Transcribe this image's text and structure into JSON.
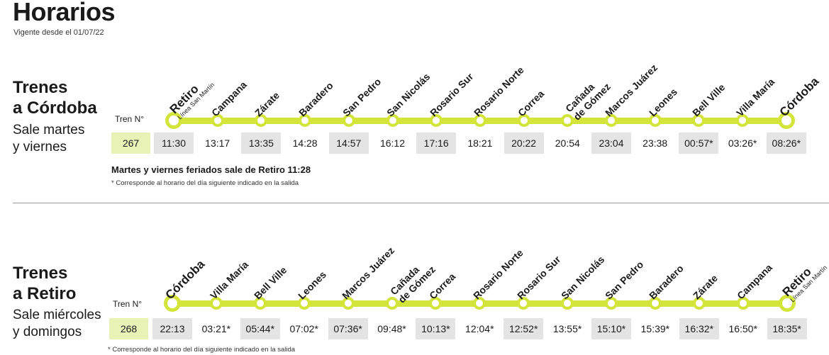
{
  "page": {
    "title": "Horarios",
    "vigente": "Vigente desde el 01/07/22"
  },
  "sections": [
    {
      "title_line1": "Trenes",
      "title_line2": "a Córdoba",
      "sub_line1": "Sale martes",
      "sub_line2": "y viernes",
      "tren_label": "Tren N°",
      "tren_number": "267",
      "stations": [
        {
          "name": "Retiro",
          "sub": "Línea San Martín",
          "terminal": true
        },
        {
          "name": "Campana"
        },
        {
          "name": "Zárate"
        },
        {
          "name": "Baradero"
        },
        {
          "name": "San Pedro"
        },
        {
          "name": "San Nicolás"
        },
        {
          "name": "Rosario Sur"
        },
        {
          "name": "Rosario Norte"
        },
        {
          "name": "Correa"
        },
        {
          "name": "Cañada",
          "name2": "de Gómez"
        },
        {
          "name": "Marcos Juárez"
        },
        {
          "name": "Leones"
        },
        {
          "name": "Bell Ville"
        },
        {
          "name": "Villa María"
        },
        {
          "name": "Córdoba",
          "terminal": true
        }
      ],
      "times": [
        "11:30",
        "13:17",
        "13:35",
        "14:28",
        "14:57",
        "16:12",
        "17:16",
        "18:21",
        "20:22",
        "20:54",
        "23:04",
        "23:38",
        "00:57*",
        "03:26*",
        "08:26*"
      ],
      "note_bold": "Martes y viernes feriados sale de Retiro 11:28",
      "note": "* Corresponde al horario del día siguiente indicado en la salida"
    },
    {
      "title_line1": "Trenes",
      "title_line2": "a Retiro",
      "sub_line1": "Sale miércoles",
      "sub_line2": "y domingos",
      "tren_label": "Tren N°",
      "tren_number": "268",
      "stations": [
        {
          "name": "Córdoba",
          "terminal": true
        },
        {
          "name": "Villa María"
        },
        {
          "name": "Bell Ville"
        },
        {
          "name": "Leones"
        },
        {
          "name": "Marcos Juárez"
        },
        {
          "name": "Cañada",
          "name2": "de Gómez"
        },
        {
          "name": "Correa"
        },
        {
          "name": "Rosario Norte"
        },
        {
          "name": "Rosario Sur"
        },
        {
          "name": "San Nicolás"
        },
        {
          "name": "San Pedro"
        },
        {
          "name": "Baradero"
        },
        {
          "name": "Zárate"
        },
        {
          "name": "Campana"
        },
        {
          "name": "Retiro",
          "sub": "Línea San Martín",
          "terminal": true
        }
      ],
      "times": [
        "22:13",
        "03:21*",
        "05:44*",
        "07:02*",
        "07:36*",
        "09:48*",
        "10:13*",
        "12:04*",
        "12:52*",
        "13:55*",
        "15:10*",
        "15:39*",
        "16:32*",
        "16:50*",
        "18:35*"
      ],
      "note": "* Corresponde al horario del día siguiente indicado en la salida"
    }
  ]
}
